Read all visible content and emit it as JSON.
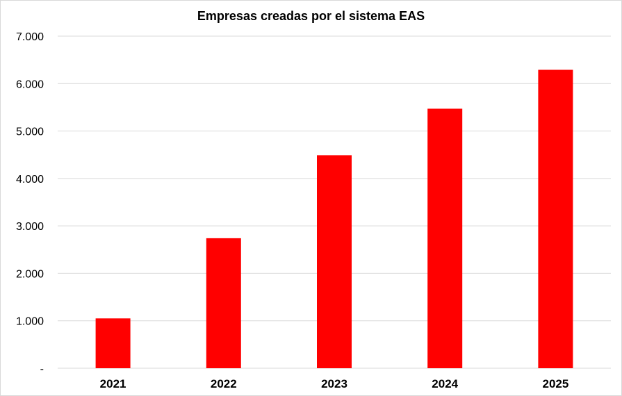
{
  "chart_data": {
    "type": "bar",
    "title": "Empresas creadas por el sistema EAS",
    "xlabel": "",
    "ylabel": "",
    "categories": [
      "2021",
      "2022",
      "2023",
      "2024",
      "2025"
    ],
    "values": [
      1050,
      2740,
      4490,
      5470,
      6290
    ],
    "ylim": [
      0,
      7000
    ],
    "yticks": [
      0,
      1000,
      2000,
      3000,
      4000,
      5000,
      6000,
      7000
    ],
    "ytick_labels": [
      "-",
      "1.000",
      "2.000",
      "3.000",
      "4.000",
      "5.000",
      "6.000",
      "7.000"
    ],
    "grid": true,
    "legend": "none",
    "bar_color": "#ff0000"
  }
}
